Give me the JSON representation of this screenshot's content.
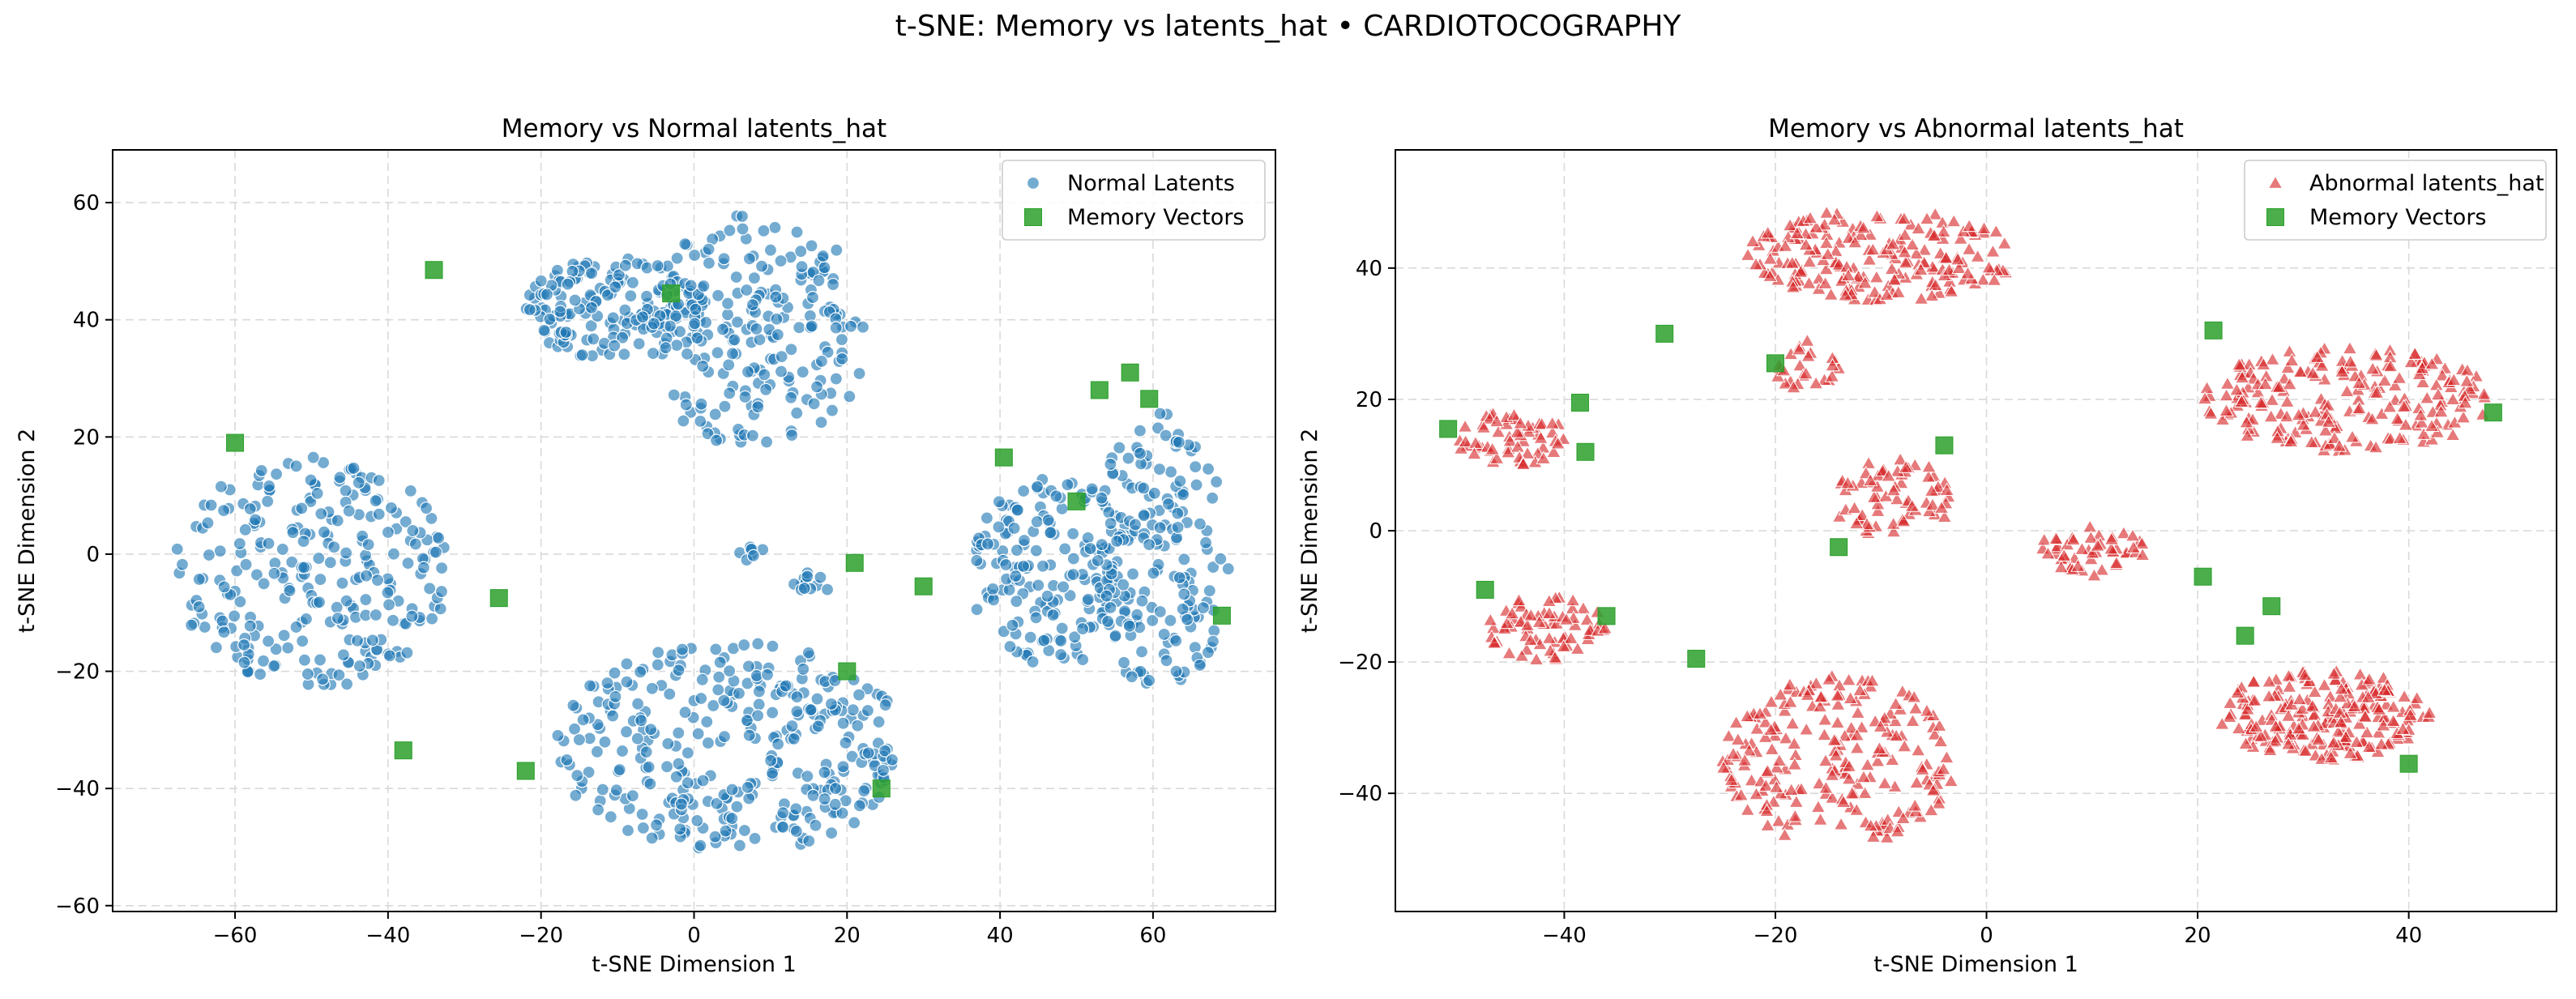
{
  "figure": {
    "title": "t-SNE: Memory vs latents_hat • CARDIOTOCOGRAPHY"
  },
  "colors": {
    "normal": "#1f77b4",
    "abnormal": "#d62728",
    "memory": "#2ca02c"
  },
  "chart_data": [
    {
      "type": "scatter",
      "title": "Memory vs Normal latents_hat",
      "xlabel": "t-SNE Dimension 1",
      "ylabel": "t-SNE Dimension 2",
      "xlim": [
        -76,
        76
      ],
      "ylim": [
        -61,
        69
      ],
      "xticks": [
        -60,
        -40,
        -20,
        0,
        20,
        40,
        60
      ],
      "yticks": [
        -60,
        -40,
        -20,
        0,
        20,
        40,
        60
      ],
      "grid": true,
      "legend_position": "top-right",
      "series": [
        {
          "name": "Normal Latents",
          "marker": "circle",
          "color": "#1f77b4",
          "clusters": [
            {
              "cx": -10,
              "cy": 42,
              "rx": 12,
              "ry": 9,
              "n": 170
            },
            {
              "cx": 8,
              "cy": 38,
              "rx": 15,
              "ry": 20,
              "n": 200
            },
            {
              "cx": -50,
              "cy": -3,
              "rx": 18,
              "ry": 20,
              "n": 260
            },
            {
              "cx": 5,
              "cy": -33,
              "rx": 23,
              "ry": 18,
              "n": 330
            },
            {
              "cx": 47,
              "cy": -3,
              "rx": 11,
              "ry": 16,
              "n": 170
            },
            {
              "cx": 61,
              "cy": 0,
              "rx": 9,
              "ry": 24,
              "n": 170
            },
            {
              "cx": 16,
              "cy": -5,
              "rx": 3,
              "ry": 2,
              "n": 12
            },
            {
              "cx": 7,
              "cy": 0,
              "rx": 2.5,
              "ry": 1.5,
              "n": 8
            }
          ]
        },
        {
          "name": "Memory Vectors",
          "marker": "square",
          "color": "#2ca02c",
          "points": [
            [
              -34,
              48.5
            ],
            [
              -3,
              44.5
            ],
            [
              -60,
              19
            ],
            [
              -25.5,
              -7.5
            ],
            [
              -38,
              -33.5
            ],
            [
              -22,
              -37
            ],
            [
              20,
              -20
            ],
            [
              24.5,
              -40
            ],
            [
              21,
              -1.5
            ],
            [
              30,
              -5.5
            ],
            [
              40.5,
              16.5
            ],
            [
              50,
              9
            ],
            [
              53,
              28
            ],
            [
              57,
              31
            ],
            [
              59.5,
              26.5
            ],
            [
              69,
              -10.5
            ]
          ]
        }
      ]
    },
    {
      "type": "scatter",
      "title": "Memory vs Abnormal latents_hat",
      "xlabel": "t-SNE Dimension 1",
      "ylabel": "t-SNE Dimension 2",
      "xlim": [
        -56,
        54
      ],
      "ylim": [
        -58,
        58
      ],
      "xticks": [
        -40,
        -20,
        0,
        20,
        40
      ],
      "yticks": [
        -40,
        -20,
        0,
        20,
        40
      ],
      "grid": true,
      "legend_position": "top-right",
      "series": [
        {
          "name": "Abnormal latents_hat",
          "marker": "triangle",
          "color": "#d62728",
          "clusters": [
            {
              "cx": -10,
              "cy": 42,
              "rx": 13,
              "ry": 7,
              "n": 200
            },
            {
              "cx": -17,
              "cy": 25,
              "rx": 3,
              "ry": 4,
              "n": 25
            },
            {
              "cx": -45,
              "cy": 14,
              "rx": 5.5,
              "ry": 4,
              "n": 60
            },
            {
              "cx": -9,
              "cy": 5,
              "rx": 6,
              "ry": 6,
              "n": 70
            },
            {
              "cx": 10,
              "cy": -3,
              "rx": 5,
              "ry": 4,
              "n": 50
            },
            {
              "cx": 34,
              "cy": 20,
              "rx": 14,
              "ry": 8,
              "n": 220
            },
            {
              "cx": -42,
              "cy": -15,
              "rx": 6,
              "ry": 5,
              "n": 70
            },
            {
              "cx": -14,
              "cy": -35,
              "rx": 11,
              "ry": 13,
              "n": 220
            },
            {
              "cx": 32,
              "cy": -28,
              "rx": 10,
              "ry": 7,
              "n": 220
            }
          ]
        },
        {
          "name": "Memory Vectors",
          "marker": "square",
          "color": "#2ca02c",
          "points": [
            [
              -30.5,
              30
            ],
            [
              -20,
              25.5
            ],
            [
              -51,
              15.5
            ],
            [
              -38.5,
              19.5
            ],
            [
              -38,
              12
            ],
            [
              -4,
              13
            ],
            [
              -14,
              -2.5
            ],
            [
              -47.5,
              -9
            ],
            [
              -36,
              -13
            ],
            [
              -27.5,
              -19.5
            ],
            [
              20.5,
              -7
            ],
            [
              21.5,
              30.5
            ],
            [
              24.5,
              -16
            ],
            [
              27,
              -11.5
            ],
            [
              40,
              -35.5
            ],
            [
              48,
              18
            ]
          ]
        }
      ]
    }
  ]
}
